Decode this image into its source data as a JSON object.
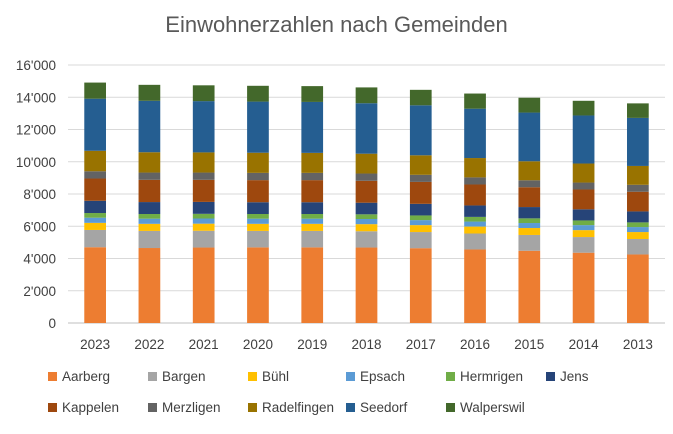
{
  "chart_data": {
    "type": "bar",
    "stacked": true,
    "title": "Einwohnerzahlen nach Gemeinden",
    "xlabel": "",
    "ylabel": "",
    "ylim": [
      0,
      16000
    ],
    "yticks": [
      0,
      2000,
      4000,
      6000,
      8000,
      10000,
      12000,
      14000,
      16000
    ],
    "ytick_labels": [
      "0",
      "2'000",
      "4'000",
      "6'000",
      "8'000",
      "10'000",
      "12'000",
      "14'000",
      "16'000"
    ],
    "grid": true,
    "legend": "bottom",
    "categories": [
      "2023",
      "2022",
      "2021",
      "2020",
      "2019",
      "2018",
      "2017",
      "2016",
      "2015",
      "2014",
      "2013"
    ],
    "series": [
      {
        "name": "Aarberg",
        "color": "#ED7D31",
        "values": [
          4700,
          4650,
          4680,
          4690,
          4690,
          4680,
          4640,
          4560,
          4480,
          4360,
          4250
        ]
      },
      {
        "name": "Bargen",
        "color": "#A5A5A5",
        "values": [
          1070,
          1060,
          1040,
          1020,
          1020,
          1010,
          1000,
          990,
          980,
          970,
          960
        ]
      },
      {
        "name": "Bühl",
        "color": "#FFC000",
        "values": [
          440,
          440,
          440,
          440,
          440,
          440,
          430,
          430,
          430,
          430,
          430
        ]
      },
      {
        "name": "Epsach",
        "color": "#5B9BD5",
        "values": [
          320,
          320,
          320,
          320,
          320,
          320,
          310,
          310,
          310,
          310,
          310
        ]
      },
      {
        "name": "Hermrigen",
        "color": "#70AD47",
        "values": [
          290,
          290,
          290,
          290,
          290,
          290,
          290,
          290,
          290,
          290,
          290
        ]
      },
      {
        "name": "Jens",
        "color": "#264478",
        "values": [
          760,
          740,
          740,
          730,
          730,
          720,
          720,
          710,
          700,
          690,
          680
        ]
      },
      {
        "name": "Kappelen",
        "color": "#9E480E",
        "values": [
          1380,
          1380,
          1370,
          1370,
          1370,
          1360,
          1360,
          1300,
          1230,
          1230,
          1220
        ]
      },
      {
        "name": "Merzligen",
        "color": "#636363",
        "values": [
          450,
          450,
          450,
          450,
          450,
          450,
          440,
          440,
          430,
          430,
          430
        ]
      },
      {
        "name": "Radelfingen",
        "color": "#997300",
        "values": [
          1270,
          1260,
          1250,
          1250,
          1240,
          1230,
          1210,
          1200,
          1180,
          1180,
          1170
        ]
      },
      {
        "name": "Seedorf",
        "color": "#255E91",
        "values": [
          3230,
          3190,
          3180,
          3170,
          3160,
          3130,
          3100,
          3060,
          3020,
          2980,
          2980
        ]
      },
      {
        "name": "Walperswil",
        "color": "#43682B",
        "values": [
          1000,
          990,
          980,
          980,
          980,
          980,
          960,
          940,
          920,
          910,
          900
        ]
      }
    ]
  }
}
